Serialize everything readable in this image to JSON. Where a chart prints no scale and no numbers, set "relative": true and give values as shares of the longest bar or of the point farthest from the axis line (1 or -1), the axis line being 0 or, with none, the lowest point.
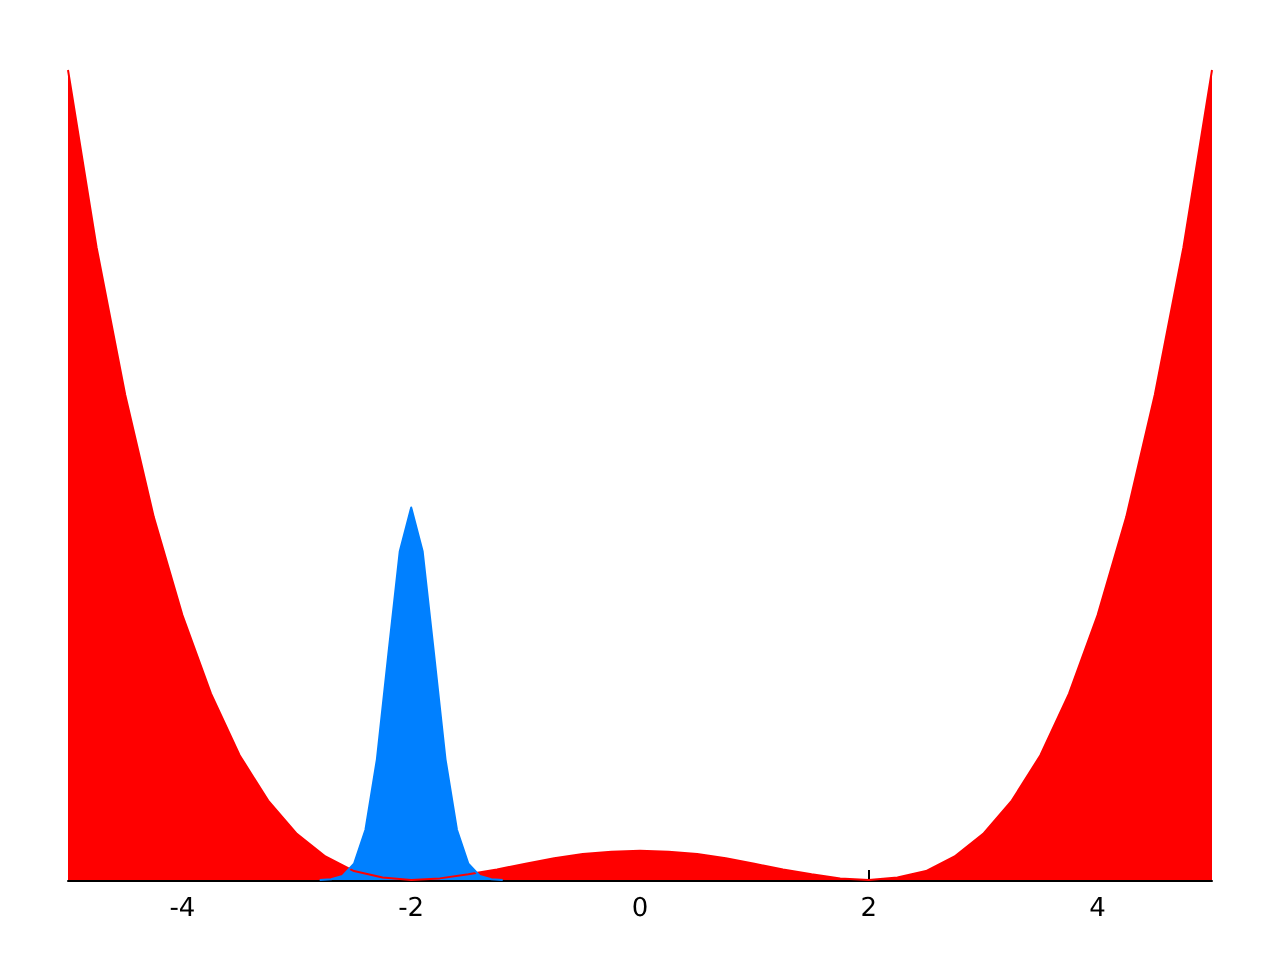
{
  "chart_data": {
    "type": "area",
    "relative": true,
    "xlim": [
      -5,
      5
    ],
    "xticks": [
      -4,
      -2,
      0,
      2,
      4
    ],
    "series": [
      {
        "color": "#ff0000",
        "x": [
          -5,
          -4.75,
          -4.5,
          -4.25,
          -4,
          -3.75,
          -3.5,
          -3.25,
          -3,
          -2.75,
          -2.5,
          -2.25,
          -2,
          -1.75,
          -1.5,
          -1.25,
          -1,
          -0.75,
          -0.5,
          -0.25,
          0,
          0.25,
          0.5,
          0.75,
          1,
          1.25,
          1.5,
          1.75,
          2,
          2.25,
          2.5,
          2.75,
          3,
          3.25,
          3.5,
          3.75,
          4,
          4.25,
          4.5,
          4.75,
          5
        ],
        "values": [
          1,
          0.781,
          0.599,
          0.448,
          0.327,
          0.23,
          0.154,
          0.098,
          0.057,
          0.029,
          0.011,
          0.003,
          0,
          0.002,
          0.007,
          0.013,
          0.02,
          0.027,
          0.032,
          0.035,
          0.036,
          0.035,
          0.032,
          0.027,
          0.02,
          0.013,
          0.007,
          0.002,
          0,
          0.003,
          0.011,
          0.029,
          0.057,
          0.098,
          0.154,
          0.23,
          0.327,
          0.448,
          0.599,
          0.781,
          1
        ]
      },
      {
        "color": "#0080ff",
        "x": [
          -2.8,
          -2.7,
          -2.6,
          -2.5,
          -2.4,
          -2.3,
          -2.2,
          -2.1,
          -2,
          -1.9,
          -1.8,
          -1.7,
          -1.6,
          -1.5,
          -1.4,
          -1.3,
          -1.2
        ],
        "values": [
          0,
          0.001,
          0.005,
          0.02,
          0.062,
          0.149,
          0.279,
          0.406,
          0.46,
          0.406,
          0.279,
          0.149,
          0.062,
          0.02,
          0.005,
          0.001,
          0
        ]
      }
    ]
  }
}
